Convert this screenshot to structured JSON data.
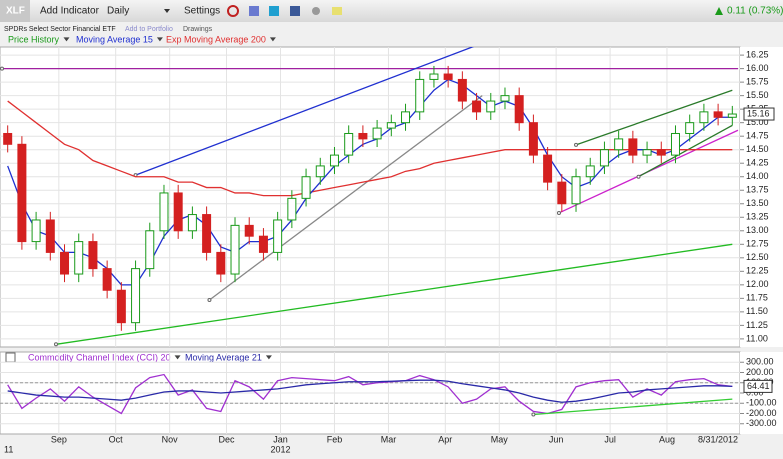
{
  "toolbar": {
    "symbol": "XLF",
    "add_indicator": "Add Indicator",
    "period": "Daily",
    "settings": "Settings",
    "change": "0.11 (0.73%)"
  },
  "header": {
    "name": "SPDRs Select Sector Financial ETF",
    "add_to_portfolio": "Add to Portfolio",
    "drawings": "Drawings"
  },
  "chart_data": [
    {
      "type": "candlestick",
      "name": "Price History",
      "up_color": "#1a9a1a",
      "down_color": "#d42020",
      "x": [
        2,
        7,
        12,
        17,
        22,
        27,
        32,
        37,
        42,
        47,
        52,
        57,
        62,
        67,
        72,
        77,
        82,
        87,
        92,
        97,
        102,
        107,
        112,
        117,
        122,
        127,
        132,
        137,
        142,
        147,
        152,
        157,
        162,
        167,
        172,
        177,
        182,
        187,
        192,
        197,
        202,
        207,
        212,
        217,
        222,
        227,
        232,
        237,
        242,
        247,
        252,
        257
      ],
      "open": [
        14.8,
        14.6,
        12.8,
        13.2,
        12.6,
        12.2,
        12.8,
        12.3,
        11.9,
        11.3,
        12.3,
        13.0,
        13.7,
        13.0,
        13.3,
        12.6,
        12.2,
        13.1,
        12.9,
        12.6,
        13.2,
        13.6,
        14.0,
        14.2,
        14.4,
        14.8,
        14.7,
        14.9,
        15.0,
        15.2,
        15.8,
        15.9,
        15.8,
        15.4,
        15.2,
        15.4,
        15.5,
        15.0,
        14.4,
        13.9,
        13.5,
        14.0,
        14.2,
        14.5,
        14.7,
        14.4,
        14.5,
        14.4,
        14.8,
        15.0,
        15.2,
        15.1
      ],
      "high": [
        14.95,
        14.75,
        13.35,
        13.35,
        12.75,
        12.95,
        12.95,
        12.45,
        12.05,
        12.45,
        13.15,
        13.85,
        13.85,
        13.45,
        13.45,
        12.75,
        13.25,
        13.25,
        13.05,
        13.35,
        13.75,
        14.15,
        14.35,
        14.55,
        14.95,
        14.95,
        15.05,
        15.15,
        15.35,
        15.95,
        16.05,
        16.05,
        15.95,
        15.55,
        15.55,
        15.65,
        15.65,
        15.15,
        14.55,
        14.05,
        14.15,
        14.35,
        14.65,
        14.85,
        14.85,
        14.65,
        14.65,
        14.95,
        15.15,
        15.35,
        15.35,
        15.31
      ],
      "low": [
        14.45,
        12.65,
        12.65,
        12.45,
        12.05,
        12.05,
        12.15,
        11.75,
        11.15,
        11.15,
        12.15,
        12.85,
        12.85,
        12.85,
        12.45,
        12.05,
        12.05,
        12.75,
        12.45,
        12.45,
        13.05,
        13.45,
        13.85,
        14.05,
        14.25,
        14.55,
        14.55,
        14.75,
        14.85,
        15.05,
        15.65,
        15.65,
        15.25,
        15.05,
        15.05,
        15.25,
        14.85,
        14.25,
        13.75,
        13.35,
        13.35,
        13.85,
        14.05,
        14.35,
        14.25,
        14.25,
        14.25,
        14.25,
        14.65,
        14.85,
        14.95,
        14.95
      ],
      "close": [
        14.6,
        12.8,
        13.2,
        12.6,
        12.2,
        12.8,
        12.3,
        11.9,
        11.3,
        12.3,
        13.0,
        13.7,
        13.0,
        13.3,
        12.6,
        12.2,
        13.1,
        12.9,
        12.6,
        13.2,
        13.6,
        14.0,
        14.2,
        14.4,
        14.8,
        14.7,
        14.9,
        15.0,
        15.2,
        15.8,
        15.9,
        15.8,
        15.4,
        15.2,
        15.4,
        15.5,
        15.0,
        14.4,
        13.9,
        13.5,
        14.0,
        14.2,
        14.5,
        14.7,
        14.4,
        14.5,
        14.4,
        14.8,
        15.0,
        15.2,
        15.1,
        15.16
      ],
      "series": [
        {
          "name": "Moving Average 15",
          "color": "#1f2fd0",
          "values": [
            14.2,
            13.5,
            13.0,
            12.9,
            12.6,
            12.6,
            12.5,
            12.3,
            12.0,
            12.0,
            12.4,
            12.9,
            13.2,
            13.3,
            13.1,
            12.7,
            12.6,
            12.8,
            12.8,
            12.9,
            13.2,
            13.6,
            13.9,
            14.2,
            14.4,
            14.6,
            14.7,
            14.9,
            15.0,
            15.3,
            15.6,
            15.8,
            15.7,
            15.5,
            15.3,
            15.4,
            15.3,
            14.9,
            14.4,
            14.0,
            13.8,
            13.9,
            14.2,
            14.4,
            14.5,
            14.5,
            14.4,
            14.5,
            14.7,
            14.9,
            15.1,
            15.1
          ]
        },
        {
          "name": "Exp Moving Average 200",
          "color": "#e03030",
          "values": [
            15.4,
            15.2,
            15.0,
            14.8,
            14.6,
            14.5,
            14.3,
            14.2,
            14.1,
            14.0,
            14.0,
            14.0,
            13.9,
            13.9,
            13.8,
            13.8,
            13.7,
            13.7,
            13.65,
            13.65,
            13.65,
            13.7,
            13.75,
            13.8,
            13.85,
            13.9,
            13.95,
            14.0,
            14.1,
            14.15,
            14.25,
            14.3,
            14.35,
            14.4,
            14.45,
            14.5,
            14.5,
            14.5,
            14.5,
            14.5,
            14.5,
            14.5,
            14.5,
            14.5,
            14.5,
            14.5,
            14.5,
            14.5,
            14.5,
            14.5,
            14.5,
            14.5
          ]
        }
      ],
      "drawings": [
        {
          "color": "#a020a0",
          "x": [
            0,
            259
          ],
          "y": [
            16,
            16
          ]
        },
        {
          "color": "#22bb22",
          "x": [
            19,
            257
          ],
          "y": [
            10.9,
            12.75
          ]
        },
        {
          "color": "#2030d0",
          "x": [
            47,
            167
          ],
          "y": [
            14.03,
            16.43
          ]
        },
        {
          "color": "#888888",
          "x": [
            73,
            169
          ],
          "y": [
            11.72,
            15.5
          ]
        },
        {
          "color": "#cc22cc",
          "x": [
            196,
            259
          ],
          "y": [
            13.33,
            14.86
          ]
        },
        {
          "color": "#2a7a2a",
          "x": [
            202,
            257
          ],
          "y": [
            14.59,
            15.6
          ]
        },
        {
          "color": "#2a7a2a",
          "x": [
            224,
            257
          ],
          "y": [
            14.0,
            14.95
          ]
        }
      ],
      "xlim": [
        0,
        259
      ],
      "ylim": [
        10.85,
        16.4
      ],
      "yticks": [
        {
          "value": 11,
          "label": "11.00"
        },
        11.25,
        {
          "value": 11.5,
          "label": "11.50"
        },
        11.75,
        {
          "value": 12,
          "label": "12.00"
        },
        12.25,
        {
          "value": 12.5,
          "label": "12.50"
        },
        12.75,
        {
          "value": 13,
          "label": "13.00"
        },
        13.25,
        {
          "value": 13.5,
          "label": "13.50"
        },
        13.75,
        {
          "value": 14,
          "label": "14.00"
        },
        14.25,
        {
          "value": 14.5,
          "label": "14.50"
        },
        14.75,
        {
          "value": 15,
          "label": "15.00"
        },
        15.25,
        {
          "value": 15.5,
          "label": "15.50"
        },
        15.75,
        {
          "value": 16,
          "label": "16.00"
        },
        16.25
      ],
      "grid": true
    },
    {
      "type": "line",
      "x": [
        2,
        7,
        12,
        17,
        22,
        27,
        32,
        37,
        42,
        47,
        52,
        57,
        62,
        67,
        72,
        77,
        82,
        87,
        92,
        97,
        102,
        107,
        112,
        117,
        122,
        127,
        132,
        137,
        142,
        147,
        152,
        157,
        162,
        167,
        172,
        177,
        182,
        187,
        192,
        197,
        202,
        207,
        212,
        217,
        222,
        227,
        232,
        237,
        242,
        247,
        252,
        257
      ],
      "series": [
        {
          "name": "Commodity Channel Index (CCI) 20",
          "color": "#a030d0",
          "values": [
            80,
            -150,
            -50,
            40,
            -80,
            60,
            -40,
            -120,
            -200,
            50,
            150,
            180,
            -20,
            30,
            -150,
            -180,
            120,
            60,
            -60,
            120,
            150,
            140,
            130,
            120,
            160,
            80,
            100,
            110,
            120,
            170,
            130,
            60,
            -100,
            -60,
            40,
            60,
            -80,
            -180,
            -200,
            -160,
            60,
            100,
            120,
            130,
            -40,
            40,
            -20,
            110,
            130,
            140,
            80,
            64.41
          ]
        },
        {
          "name": "Moving Average 21",
          "color": "#2a2aa8",
          "values": [
            20,
            0,
            -20,
            -30,
            -40,
            -40,
            -50,
            -60,
            -70,
            -50,
            -20,
            10,
            20,
            20,
            10,
            0,
            10,
            20,
            30,
            40,
            60,
            80,
            90,
            100,
            110,
            110,
            110,
            115,
            120,
            125,
            125,
            115,
            90,
            70,
            50,
            30,
            0,
            -40,
            -70,
            -90,
            -80,
            -60,
            -30,
            0,
            10,
            30,
            40,
            50,
            60,
            70,
            70,
            65
          ]
        }
      ],
      "reference_lines": [
        100,
        -100
      ],
      "drawings": [
        {
          "color": "#33cc33",
          "x": [
            187,
            257
          ],
          "y": [
            -210,
            -60
          ]
        }
      ],
      "xlim": [
        0,
        259
      ],
      "ylim": [
        -400,
        400
      ],
      "yticks": [
        {
          "value": 300,
          "label": "300.00"
        },
        {
          "value": 200,
          "label": "200.00"
        },
        {
          "value": 100,
          "label": "100.00"
        },
        {
          "value": 0,
          "label": "0.00"
        },
        {
          "value": -100,
          "label": "-100.00"
        },
        {
          "value": -200,
          "label": "-200.00"
        },
        {
          "value": -300,
          "label": "-300.00"
        }
      ],
      "xticks": [
        {
          "value": 20,
          "label": "Sep"
        },
        {
          "value": 40,
          "label": "Oct"
        },
        {
          "value": 59,
          "label": "Nov"
        },
        {
          "value": 79,
          "label": "Dec"
        },
        {
          "value": 98,
          "label": "Jan"
        },
        {
          "value": 117,
          "label": "Feb"
        },
        {
          "value": 136,
          "label": "Mar"
        },
        {
          "value": 156,
          "label": "Apr"
        },
        {
          "value": 175,
          "label": "May"
        },
        {
          "value": 195,
          "label": "Jun"
        },
        {
          "value": 214,
          "label": "Jul"
        },
        {
          "value": 234,
          "label": "Aug"
        }
      ],
      "year_labels": [
        {
          "value": 0,
          "label": "11"
        },
        {
          "value": 98,
          "label": "2012"
        }
      ],
      "end_date": "8/31/2012",
      "grid": true
    }
  ]
}
